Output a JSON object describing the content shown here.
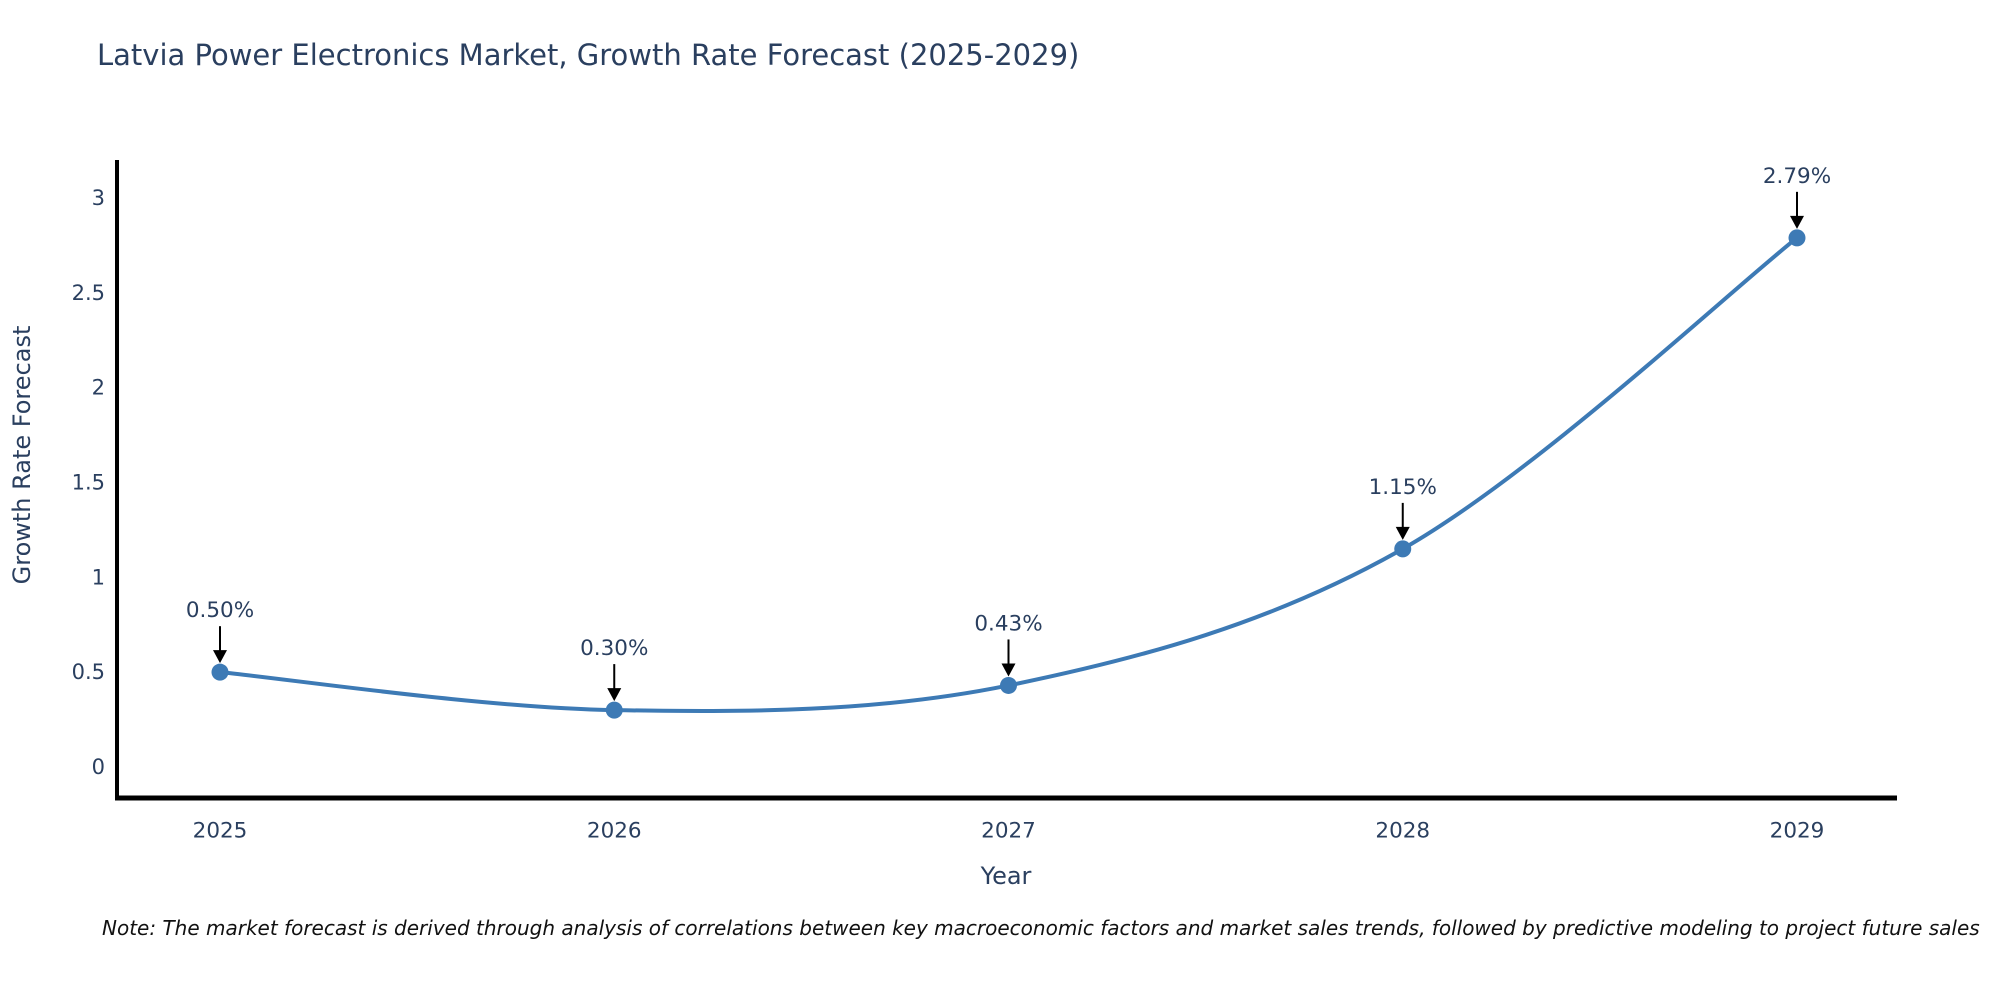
{
  "note": "Note: The market forecast is derived through analysis of correlations between key macroeconomic factors and market sales trends, followed by predictive modeling to project future sales",
  "chart_data": {
    "type": "line",
    "title": "Latvia Power Electronics Market, Growth Rate Forecast (2025-2029)",
    "xlabel": "Year",
    "ylabel": "Growth Rate Forecast",
    "x": [
      2025,
      2026,
      2027,
      2028,
      2029
    ],
    "y": [
      0.5,
      0.3,
      0.43,
      1.15,
      2.79
    ],
    "point_labels": [
      "0.50%",
      "0.30%",
      "0.43%",
      "1.15%",
      "2.79%"
    ],
    "xtick_labels": [
      "2025",
      "2026",
      "2027",
      "2028",
      "2029"
    ],
    "yticks": [
      0,
      0.5,
      1,
      1.5,
      2,
      2.5,
      3
    ],
    "ytick_labels": [
      "0",
      "0.5",
      "1",
      "1.5",
      "2",
      "2.5",
      "3"
    ],
    "ylim": [
      -0.2,
      3.2
    ],
    "grid": false,
    "legend": "none",
    "line_shape": "spline",
    "marker": "circle",
    "annotation_arrows": true,
    "colors": {
      "line": "#3d7ab5",
      "marker": "#3d7ab5",
      "axis": "#000000",
      "tick_text": "#2a3f5f",
      "title_text": "#2a3f5f",
      "annotation_text": "#2a3f5f",
      "arrow": "#000000",
      "background": "#ffffff"
    }
  }
}
